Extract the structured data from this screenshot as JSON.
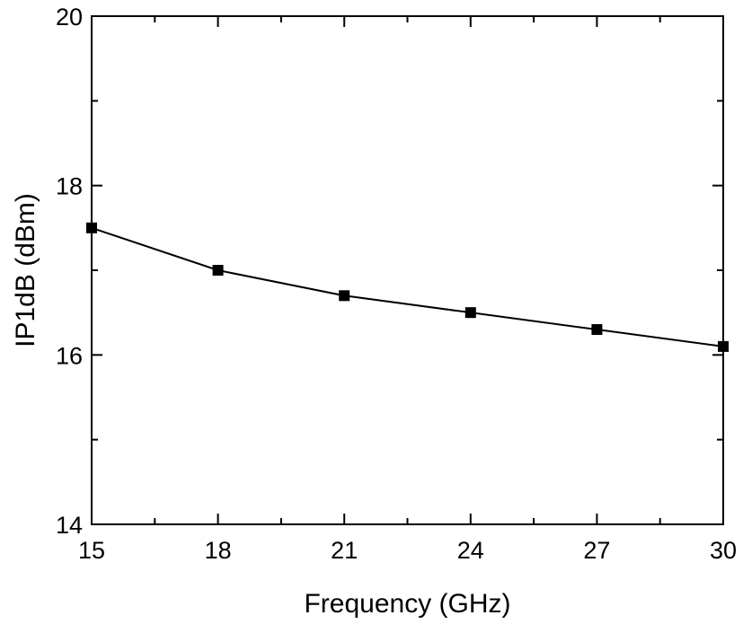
{
  "chart_data": {
    "type": "line",
    "title": "",
    "xlabel": "Frequency (GHz)",
    "ylabel": "IP1dB (dBm)",
    "xlim": [
      15,
      30
    ],
    "ylim": [
      14,
      20
    ],
    "xticks": [
      15,
      18,
      21,
      24,
      27,
      30
    ],
    "yticks": [
      14,
      16,
      18,
      20
    ],
    "xtick_labels": [
      "15",
      "18",
      "21",
      "24",
      "27",
      "30"
    ],
    "ytick_labels": [
      "14",
      "16",
      "18",
      "20"
    ],
    "grid": false,
    "series": [
      {
        "name": "IP1dB",
        "x": [
          15,
          18,
          21,
          24,
          27,
          30
        ],
        "y": [
          17.5,
          17.0,
          16.7,
          16.5,
          16.3,
          16.1
        ],
        "color": "#000000",
        "marker": "square"
      }
    ]
  }
}
